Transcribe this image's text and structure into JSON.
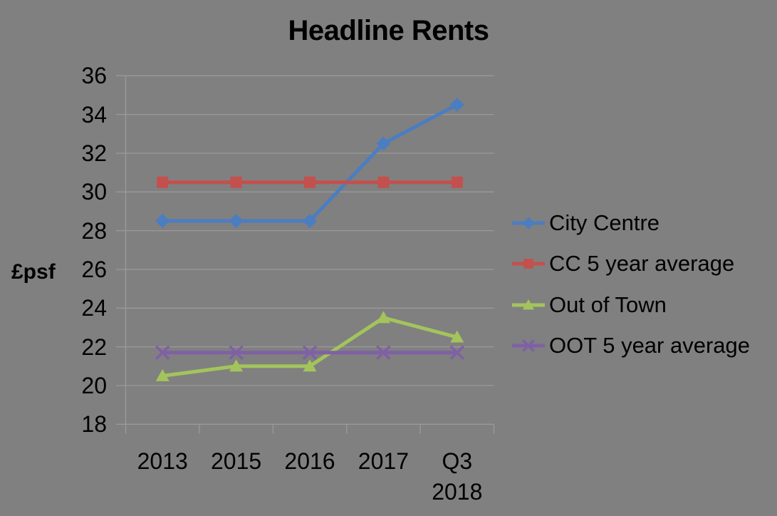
{
  "chart_data": {
    "type": "line",
    "title": "Headline Rents",
    "ylabel": "£psf",
    "xlabel": "",
    "categories": [
      "2013",
      "2015",
      "2016",
      "2017",
      "Q3\n2018"
    ],
    "series": [
      {
        "name": "City Centre",
        "marker": "diamond",
        "color": "#4b7dc1",
        "values": [
          28.5,
          28.5,
          28.5,
          32.5,
          34.5
        ]
      },
      {
        "name": "CC 5 year average",
        "marker": "square",
        "color": "#c4504e",
        "values": [
          30.5,
          30.5,
          30.5,
          30.5,
          30.5
        ]
      },
      {
        "name": "Out of Town",
        "marker": "triangle",
        "color": "#a3c45c",
        "values": [
          20.5,
          21.0,
          21.0,
          23.5,
          22.5
        ]
      },
      {
        "name": "OOT 5 year average",
        "marker": "x",
        "color": "#7f60a5",
        "values": [
          21.7,
          21.7,
          21.7,
          21.7,
          21.7
        ]
      }
    ],
    "ylim": [
      18,
      36
    ],
    "ytick_step": 2,
    "grid": true,
    "legend_position": "right",
    "background_color": "#808080",
    "grid_color": "#9a9a9a",
    "text_color": "#000000"
  }
}
